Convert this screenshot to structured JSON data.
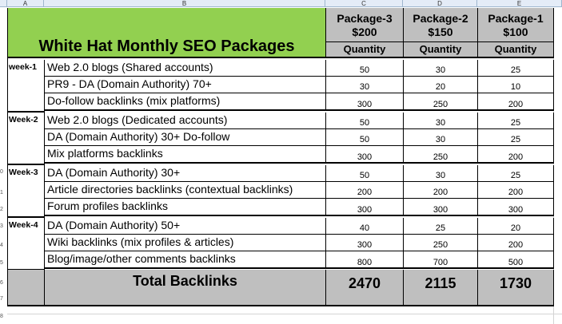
{
  "spreadsheet": {
    "columns": [
      "A",
      "B",
      "C",
      "D",
      "E"
    ],
    "row_numbers": [
      "0",
      "1",
      "2",
      "3",
      "4",
      "5",
      "6",
      "7",
      "8"
    ]
  },
  "table": {
    "title": "White Hat Monthly SEO Packages",
    "packages": [
      {
        "name": "Package-3",
        "price": "$200"
      },
      {
        "name": "Package-2",
        "price": "$150"
      },
      {
        "name": "Package-1",
        "price": "$100"
      }
    ],
    "quantity_label": "Quantity",
    "weeks": [
      {
        "label": "week-1",
        "rows": [
          {
            "item": "Web 2.0 blogs (Shared accounts)",
            "values": [
              "50",
              "30",
              "25"
            ]
          },
          {
            "item": "PR9 - DA (Domain Authority) 70+",
            "values": [
              "30",
              "20",
              "10"
            ]
          },
          {
            "item": "Do-follow backlinks (mix platforms)",
            "values": [
              "300",
              "250",
              "200"
            ]
          }
        ]
      },
      {
        "label": "Week-2",
        "rows": [
          {
            "item": "Web 2.0 blogs (Dedicated accounts)",
            "values": [
              "50",
              "30",
              "25"
            ]
          },
          {
            "item": "DA (Domain Authority) 30+ Do-follow",
            "values": [
              "50",
              "30",
              "25"
            ]
          },
          {
            "item": "Mix platforms backlinks",
            "values": [
              "300",
              "250",
              "200"
            ]
          }
        ]
      },
      {
        "label": "Week-3",
        "rows": [
          {
            "item": "DA (Domain Authority) 30+",
            "values": [
              "50",
              "30",
              "25"
            ]
          },
          {
            "item": "Article directories backlinks (contextual backlinks)",
            "values": [
              "200",
              "200",
              "200"
            ]
          },
          {
            "item": "Forum profiles backlinks",
            "values": [
              "300",
              "300",
              "300"
            ]
          }
        ]
      },
      {
        "label": "Week-4",
        "rows": [
          {
            "item": "DA (Domain Authority) 50+",
            "values": [
              "40",
              "25",
              "20"
            ]
          },
          {
            "item": "Wiki backlinks (mix profiles & articles)",
            "values": [
              "300",
              "250",
              "200"
            ]
          },
          {
            "item": "Blog/image/other comments backlinks",
            "values": [
              "800",
              "700",
              "500"
            ]
          }
        ]
      }
    ],
    "total_label": "Total Backlinks",
    "totals": [
      "2470",
      "2115",
      "1730"
    ]
  },
  "colors": {
    "header_green": "#92d050",
    "header_gray": "#bfbfbf",
    "sheet_header": "#e4ecf7"
  }
}
